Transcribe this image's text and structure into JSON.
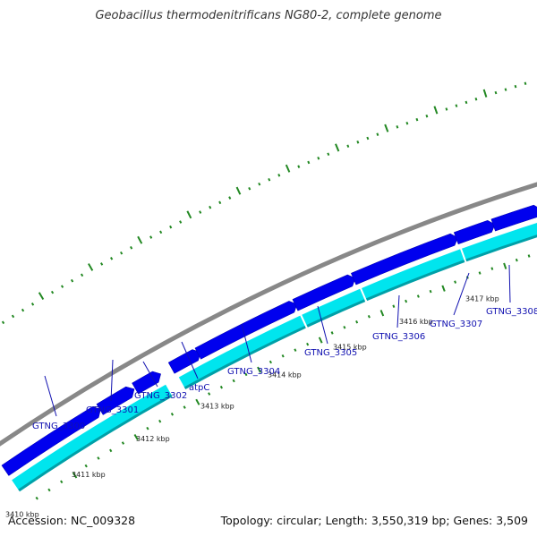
{
  "title": "Geobacillus thermodenitrificans NG80-2, complete genome",
  "footer": {
    "accession": "Accession: NC_009328",
    "summary": "Topology: circular; Length: 3,550,319 bp; Genes: 3,509"
  },
  "colors": {
    "backbone": "#888888",
    "forward_gene": "#0000ee",
    "cds_band": "#00e5ee",
    "cds_edge": "#00a0a8",
    "ticks": "#228822",
    "label": "#1010b0"
  },
  "position_ticks": [
    "3410 kbp",
    "3411 kbp",
    "3412 kbp",
    "3413 kbp",
    "3414 kbp",
    "3415 kbp",
    "3416 kbp",
    "3417 kbp"
  ],
  "genes": [
    "GTNG_3300",
    "GTNG_3301",
    "GTNG_3302",
    "atpC",
    "GTNG_3304",
    "GTNG_3305",
    "GTNG_3306",
    "GTNG_3307",
    "GTNG_3308"
  ]
}
